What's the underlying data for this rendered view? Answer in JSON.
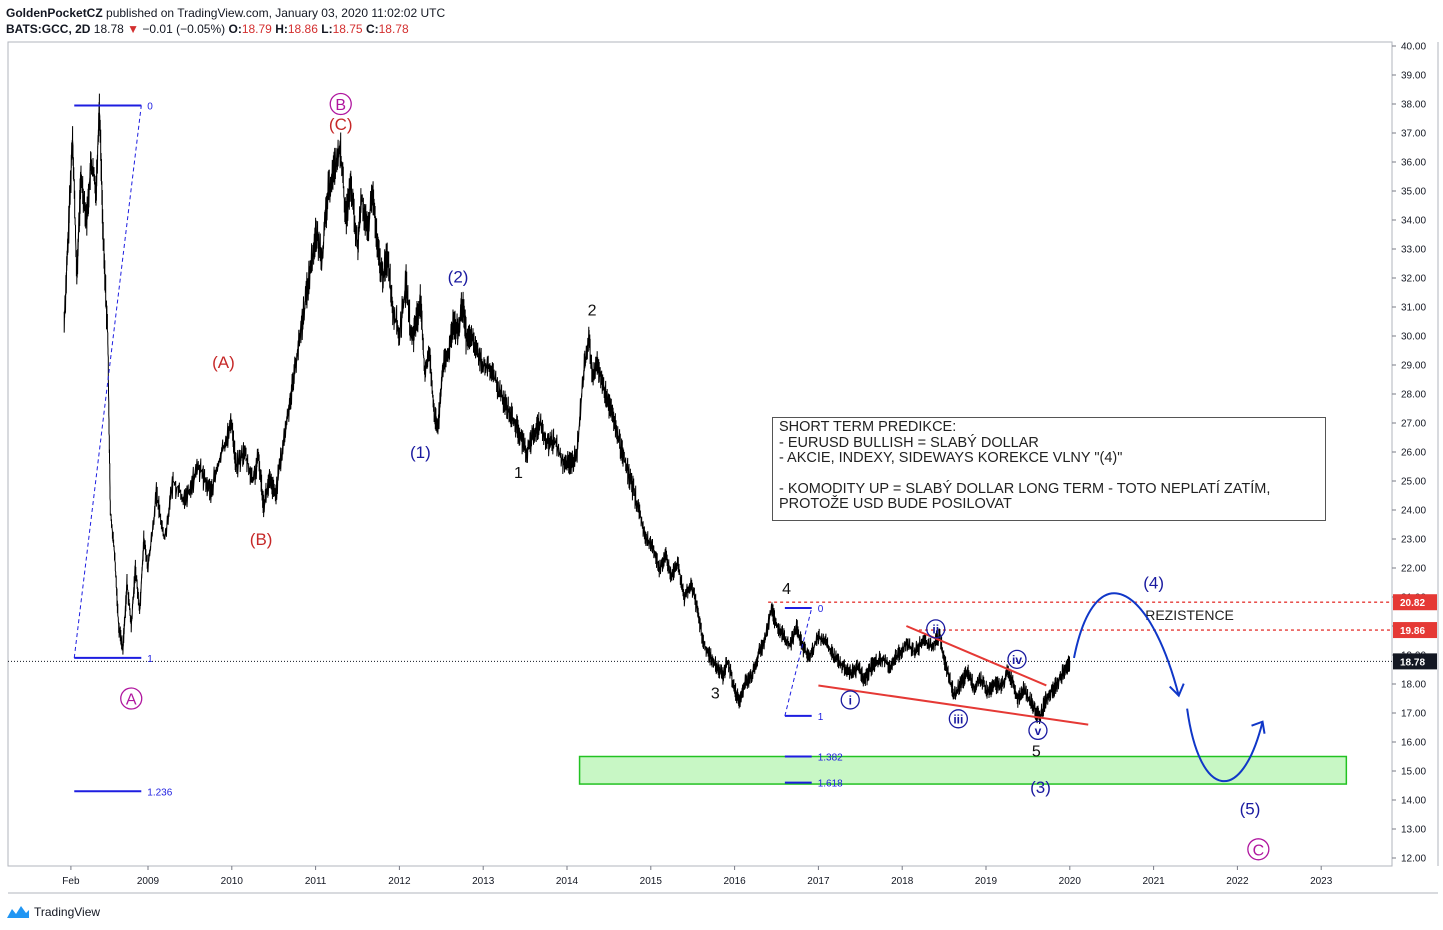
{
  "header": {
    "author": "GoldenPocketCZ",
    "published": "published on TradingView.com, January 03, 2020 11:02:02 UTC",
    "symbol": "BATS:GCC, 2D",
    "last": "18.78",
    "change_arrow": "▼",
    "change": "−0.01 (−0.05%)",
    "o_label": "O:",
    "o": "18.79",
    "h_label": "H:",
    "h": "18.86",
    "l_label": "L:",
    "l": "18.75",
    "c_label": "C:",
    "c": "18.78"
  },
  "footer": {
    "brand": "TradingView",
    "logo_icon": "tradingview-logo-icon"
  },
  "predictions": {
    "title": "SHORT TERM PREDIKCE:",
    "line1": "- EURUSD BULLISH = SLABÝ DOLLAR",
    "line2": "- AKCIE, INDEXY, SIDEWAYS KOREKCE VLNY \"(4)\"",
    "line3": "- KOMODITY UP = SLABÝ DOLLAR LONG TERM - TOTO NEPLATÍ ZATÍM,",
    "line4": "PROTOŽE USD BUDE POSILOVAT"
  },
  "chart_data": {
    "type": "line",
    "title": "",
    "xlabel": "",
    "ylabel": "",
    "ylim": [
      11.6,
      40.1
    ],
    "xlim": [
      2007.9,
      2023.9
    ],
    "price_ticks": [
      "40.00",
      "39.00",
      "38.00",
      "37.00",
      "36.00",
      "35.00",
      "34.00",
      "33.00",
      "32.00",
      "31.00",
      "30.00",
      "29.00",
      "28.00",
      "27.00",
      "26.00",
      "25.00",
      "24.00",
      "23.00",
      "22.00",
      "21.00",
      "20.00",
      "19.00",
      "18.00",
      "17.00",
      "16.00",
      "15.00",
      "14.00",
      "13.00",
      "12.00"
    ],
    "time_ticks": [
      {
        "label": "Feb",
        "t": 2008.08
      },
      {
        "label": "2009",
        "t": 2009.0
      },
      {
        "label": "2010",
        "t": 2010.0
      },
      {
        "label": "2011",
        "t": 2011.0
      },
      {
        "label": "2012",
        "t": 2012.0
      },
      {
        "label": "2013",
        "t": 2013.0
      },
      {
        "label": "2014",
        "t": 2014.0
      },
      {
        "label": "2015",
        "t": 2015.0
      },
      {
        "label": "2016",
        "t": 2016.0
      },
      {
        "label": "2017",
        "t": 2017.0
      },
      {
        "label": "2018",
        "t": 2018.0
      },
      {
        "label": "2019",
        "t": 2019.0
      },
      {
        "label": "2020",
        "t": 2020.0
      },
      {
        "label": "2021",
        "t": 2021.0
      },
      {
        "label": "2022",
        "t": 2022.0
      },
      {
        "label": "2023",
        "t": 2023.0
      }
    ],
    "price_series": [
      [
        2008.0,
        30.5
      ],
      [
        2008.05,
        33.5
      ],
      [
        2008.1,
        37.0
      ],
      [
        2008.15,
        32.0
      ],
      [
        2008.2,
        35.5
      ],
      [
        2008.27,
        34.0
      ],
      [
        2008.32,
        36.0
      ],
      [
        2008.38,
        35.0
      ],
      [
        2008.42,
        38.0
      ],
      [
        2008.47,
        33.0
      ],
      [
        2008.52,
        30.0
      ],
      [
        2008.55,
        24.0
      ],
      [
        2008.6,
        22.5
      ],
      [
        2008.65,
        20.0
      ],
      [
        2008.7,
        19.2
      ],
      [
        2008.75,
        21.5
      ],
      [
        2008.8,
        20.0
      ],
      [
        2008.85,
        22.0
      ],
      [
        2008.9,
        20.5
      ],
      [
        2008.95,
        23.0
      ],
      [
        2009.0,
        22.0
      ],
      [
        2009.1,
        24.5
      ],
      [
        2009.2,
        23.0
      ],
      [
        2009.3,
        25.0
      ],
      [
        2009.45,
        24.3
      ],
      [
        2009.6,
        25.5
      ],
      [
        2009.75,
        24.6
      ],
      [
        2009.88,
        26.0
      ],
      [
        2010.0,
        27.0
      ],
      [
        2010.05,
        25.5
      ],
      [
        2010.15,
        26.0
      ],
      [
        2010.25,
        25.0
      ],
      [
        2010.32,
        25.8
      ],
      [
        2010.38,
        24.2
      ],
      [
        2010.45,
        25.0
      ],
      [
        2010.52,
        24.5
      ],
      [
        2010.6,
        26.0
      ],
      [
        2010.68,
        27.5
      ],
      [
        2010.76,
        29.0
      ],
      [
        2010.84,
        30.5
      ],
      [
        2010.92,
        32.0
      ],
      [
        2011.0,
        33.5
      ],
      [
        2011.08,
        32.8
      ],
      [
        2011.15,
        35.0
      ],
      [
        2011.22,
        35.8
      ],
      [
        2011.3,
        36.4
      ],
      [
        2011.36,
        34.0
      ],
      [
        2011.42,
        35.2
      ],
      [
        2011.5,
        33.0
      ],
      [
        2011.55,
        34.8
      ],
      [
        2011.62,
        33.5
      ],
      [
        2011.68,
        35.0
      ],
      [
        2011.74,
        33.0
      ],
      [
        2011.8,
        32.0
      ],
      [
        2011.86,
        32.8
      ],
      [
        2011.92,
        31.0
      ],
      [
        2012.0,
        30.0
      ],
      [
        2012.08,
        31.8
      ],
      [
        2012.15,
        29.8
      ],
      [
        2012.2,
        30.5
      ],
      [
        2012.25,
        31.2
      ],
      [
        2012.3,
        28.8
      ],
      [
        2012.36,
        29.4
      ],
      [
        2012.42,
        27.2
      ],
      [
        2012.46,
        26.8
      ],
      [
        2012.52,
        29.0
      ],
      [
        2012.58,
        29.3
      ],
      [
        2012.64,
        30.5
      ],
      [
        2012.7,
        30.0
      ],
      [
        2012.75,
        31.1
      ],
      [
        2012.8,
        29.9
      ],
      [
        2012.86,
        30.0
      ],
      [
        2012.92,
        29.5
      ],
      [
        2013.0,
        29.0
      ],
      [
        2013.1,
        28.8
      ],
      [
        2013.2,
        28.0
      ],
      [
        2013.3,
        27.5
      ],
      [
        2013.38,
        27.0
      ],
      [
        2013.45,
        26.5
      ],
      [
        2013.52,
        26.0
      ],
      [
        2013.6,
        26.6
      ],
      [
        2013.68,
        27.0
      ],
      [
        2013.75,
        26.3
      ],
      [
        2013.85,
        26.4
      ],
      [
        2013.95,
        25.7
      ],
      [
        2014.05,
        25.6
      ],
      [
        2014.12,
        26.0
      ],
      [
        2014.2,
        28.8
      ],
      [
        2014.26,
        30.0
      ],
      [
        2014.3,
        28.6
      ],
      [
        2014.36,
        29.0
      ],
      [
        2014.42,
        28.4
      ],
      [
        2014.48,
        27.8
      ],
      [
        2014.55,
        27.2
      ],
      [
        2014.62,
        26.4
      ],
      [
        2014.7,
        25.6
      ],
      [
        2014.78,
        24.8
      ],
      [
        2014.86,
        24.0
      ],
      [
        2014.94,
        23.0
      ],
      [
        2015.02,
        22.8
      ],
      [
        2015.1,
        22.0
      ],
      [
        2015.18,
        22.4
      ],
      [
        2015.25,
        21.7
      ],
      [
        2015.32,
        22.2
      ],
      [
        2015.4,
        21.0
      ],
      [
        2015.48,
        21.5
      ],
      [
        2015.56,
        20.5
      ],
      [
        2015.62,
        19.5
      ],
      [
        2015.7,
        19.0
      ],
      [
        2015.78,
        18.6
      ],
      [
        2015.86,
        18.3
      ],
      [
        2015.92,
        18.8
      ],
      [
        2016.0,
        17.8
      ],
      [
        2016.06,
        17.4
      ],
      [
        2016.12,
        18.0
      ],
      [
        2016.2,
        18.3
      ],
      [
        2016.28,
        19.0
      ],
      [
        2016.36,
        19.5
      ],
      [
        2016.44,
        20.6
      ],
      [
        2016.5,
        20.0
      ],
      [
        2016.58,
        19.7
      ],
      [
        2016.66,
        19.3
      ],
      [
        2016.74,
        20.0
      ],
      [
        2016.82,
        19.2
      ],
      [
        2016.9,
        19.0
      ],
      [
        2017.0,
        19.6
      ],
      [
        2017.1,
        19.4
      ],
      [
        2017.2,
        18.9
      ],
      [
        2017.3,
        18.6
      ],
      [
        2017.4,
        18.4
      ],
      [
        2017.48,
        18.6
      ],
      [
        2017.55,
        18.1
      ],
      [
        2017.65,
        18.7
      ],
      [
        2017.75,
        18.9
      ],
      [
        2017.85,
        18.6
      ],
      [
        2017.95,
        19.0
      ],
      [
        2018.05,
        19.4
      ],
      [
        2018.15,
        19.1
      ],
      [
        2018.25,
        19.5
      ],
      [
        2018.35,
        19.3
      ],
      [
        2018.45,
        19.7
      ],
      [
        2018.5,
        18.8
      ],
      [
        2018.56,
        18.2
      ],
      [
        2018.62,
        17.6
      ],
      [
        2018.7,
        18.0
      ],
      [
        2018.78,
        18.4
      ],
      [
        2018.86,
        17.9
      ],
      [
        2018.94,
        18.2
      ],
      [
        2019.02,
        17.7
      ],
      [
        2019.1,
        18.0
      ],
      [
        2019.18,
        17.9
      ],
      [
        2019.26,
        18.4
      ],
      [
        2019.32,
        18.1
      ],
      [
        2019.38,
        17.5
      ],
      [
        2019.44,
        17.8
      ],
      [
        2019.52,
        17.5
      ],
      [
        2019.6,
        17.0
      ],
      [
        2019.65,
        16.9
      ],
      [
        2019.72,
        17.5
      ],
      [
        2019.8,
        17.8
      ],
      [
        2019.88,
        18.2
      ],
      [
        2019.96,
        18.6
      ],
      [
        2020.0,
        18.78
      ]
    ],
    "annotations": {
      "waves_red": [
        {
          "label": "(A)",
          "t": 2009.9,
          "p": 28.9
        },
        {
          "label": "(B)",
          "t": 2010.35,
          "p": 22.8
        },
        {
          "label": "(C)",
          "t": 2011.3,
          "p": 37.1
        }
      ],
      "waves_magenta_circled": [
        {
          "label": "B",
          "t": 2011.3,
          "p": 38.0
        },
        {
          "label": "A",
          "t": 2008.8,
          "p": 17.5
        },
        {
          "label": "C",
          "t": 2022.25,
          "p": 12.3
        }
      ],
      "waves_blue_paren": [
        {
          "label": "(2)",
          "t": 2012.7,
          "p": 31.85
        },
        {
          "label": "(1)",
          "t": 2012.25,
          "p": 25.8
        },
        {
          "label": "(4)",
          "t": 2021.0,
          "p": 21.3
        },
        {
          "label": "(3)",
          "t": 2019.65,
          "p": 14.25
        },
        {
          "label": "(5)",
          "t": 2022.15,
          "p": 13.5
        }
      ],
      "waves_black": [
        {
          "label": "2",
          "t": 2014.3,
          "p": 30.7
        },
        {
          "label": "1",
          "t": 2013.42,
          "p": 25.1
        },
        {
          "label": "3",
          "t": 2015.77,
          "p": 17.5
        },
        {
          "label": "4",
          "t": 2016.62,
          "p": 21.1
        },
        {
          "label": "5",
          "t": 2019.6,
          "p": 15.5
        }
      ],
      "waves_blue_circled": [
        {
          "label": "i",
          "t": 2017.38,
          "p": 17.45
        },
        {
          "label": "ii",
          "t": 2018.4,
          "p": 19.9
        },
        {
          "label": "iii",
          "t": 2018.67,
          "p": 16.8
        },
        {
          "label": "iv",
          "t": 2019.37,
          "p": 18.85
        },
        {
          "label": "v",
          "t": 2019.62,
          "p": 16.4
        }
      ]
    },
    "fib_levels": [
      {
        "label": "0",
        "t0": 2008.12,
        "t1": 2008.92,
        "p": 37.95
      },
      {
        "label": "1",
        "t0": 2008.12,
        "t1": 2008.92,
        "p": 18.9
      },
      {
        "label": "1.236",
        "t0": 2008.12,
        "t1": 2008.92,
        "p": 14.3
      },
      {
        "label": "0",
        "t0": 2016.6,
        "t1": 2016.92,
        "p": 20.62
      },
      {
        "label": "1",
        "t0": 2016.6,
        "t1": 2016.92,
        "p": 16.9
      },
      {
        "label": "1.382",
        "t0": 2016.6,
        "t1": 2016.92,
        "p": 15.5
      },
      {
        "label": "1.618",
        "t0": 2016.6,
        "t1": 2016.92,
        "p": 14.6
      }
    ],
    "resistance": [
      {
        "price": "20.82",
        "p": 20.82,
        "t0": 2016.4
      },
      {
        "price": "19.86",
        "p": 19.86,
        "t0": 2018.2
      }
    ],
    "resistance_label": "REZISTENCE",
    "current_price_label": "18.78",
    "current_price": 18.78,
    "support_zone": {
      "p_top": 15.5,
      "p_bottom": 14.55,
      "t0": 2014.15,
      "t1": 2023.3
    },
    "trendlines": [
      {
        "t0": 2018.05,
        "p0": 20.0,
        "t1": 2019.72,
        "p1": 17.95
      },
      {
        "t0": 2017.0,
        "p0": 17.95,
        "t1": 2020.22,
        "p1": 16.6
      }
    ],
    "colors": {
      "price": "#000000",
      "red_wave": "#c62828",
      "magenta_wave": "#b0169f",
      "blue_wave": "#1a1aa0",
      "fib": "#1d1de0",
      "resistance": "#e53935",
      "trendline": "#e53935",
      "forecast": "#1037c8",
      "zone_fill": "#c8f7c5",
      "zone_border": "#22c222"
    }
  }
}
